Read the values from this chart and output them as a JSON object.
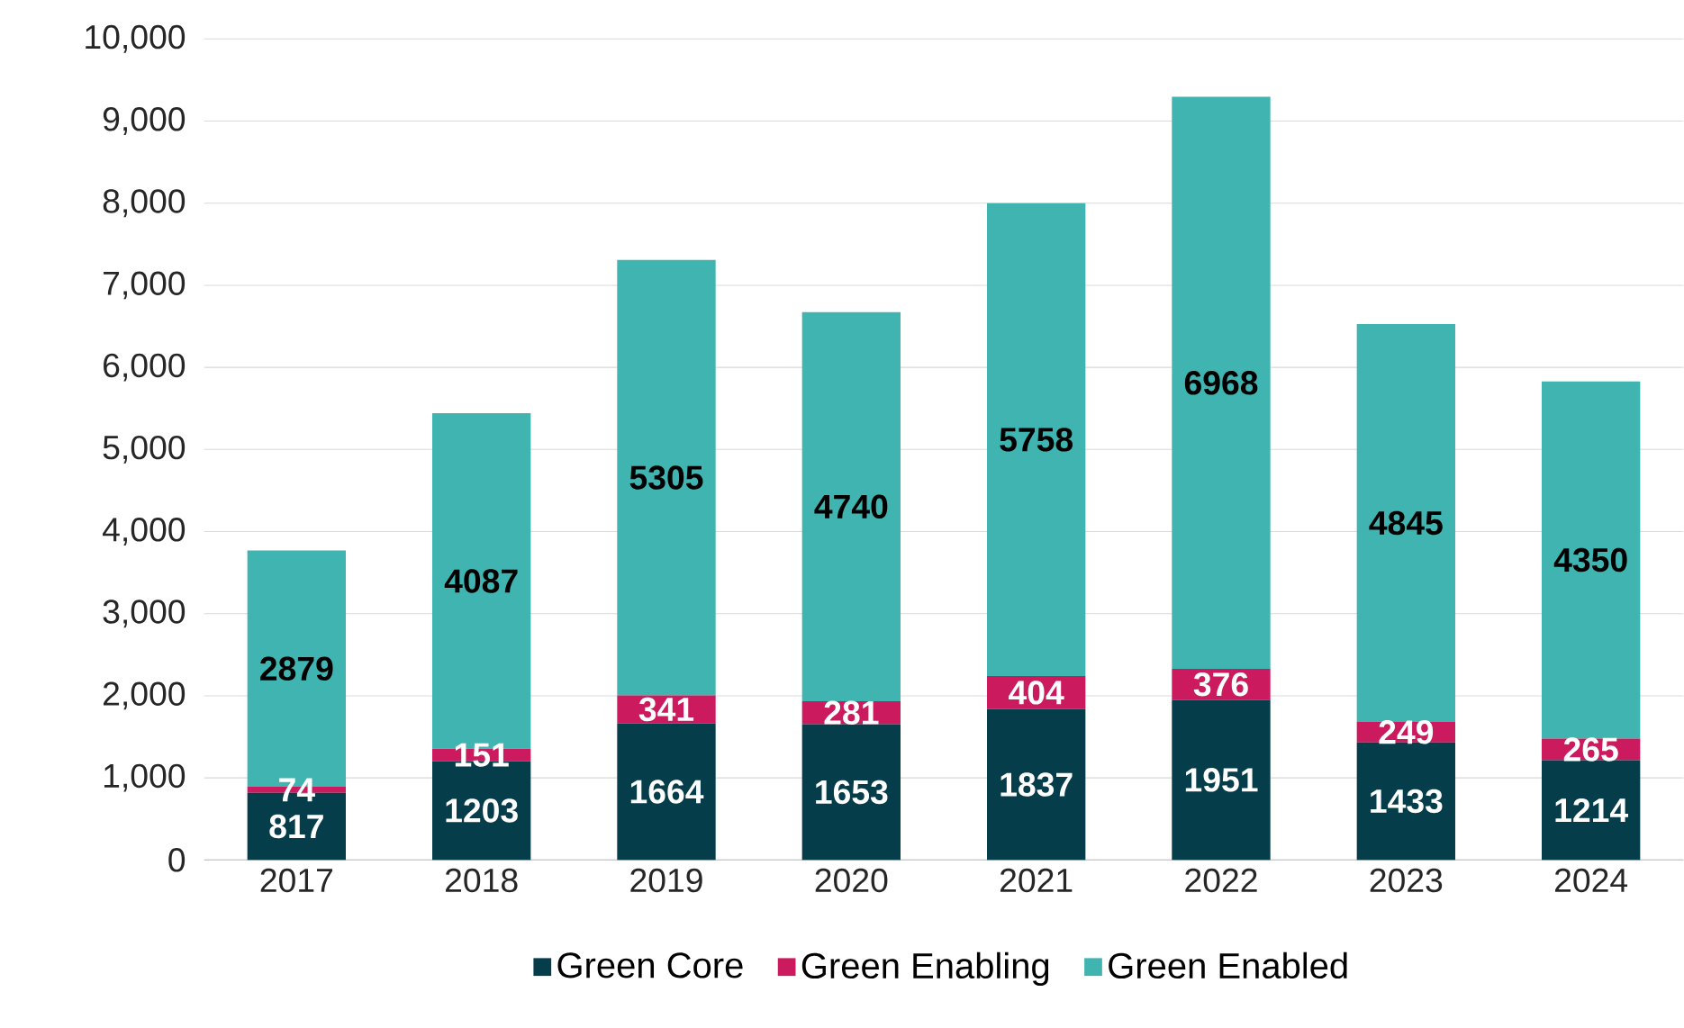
{
  "chart_data": {
    "type": "bar",
    "stacked": true,
    "categories": [
      "2017",
      "2018",
      "2019",
      "2020",
      "2021",
      "2022",
      "2023",
      "2024"
    ],
    "series": [
      {
        "name": "Green Core",
        "color": "#063d4b",
        "values": [
          817,
          1203,
          1664,
          1653,
          1837,
          1951,
          1433,
          1214
        ]
      },
      {
        "name": "Green Enabling",
        "color": "#cc1a5e",
        "values": [
          74,
          151,
          341,
          281,
          404,
          376,
          249,
          265
        ]
      },
      {
        "name": "Green Enabled",
        "color": "#40b4b0",
        "values": [
          2879,
          4087,
          5305,
          4740,
          5758,
          6968,
          4845,
          4350
        ]
      }
    ],
    "ylim": [
      0,
      10000
    ],
    "yticks": [
      0,
      {
        "value": 1000,
        "label": "1,000"
      },
      {
        "value": 2000,
        "label": "2,000"
      },
      {
        "value": 3000,
        "label": "3,000"
      },
      {
        "value": 4000,
        "label": "4,000"
      },
      {
        "value": 5000,
        "label": "5,000"
      },
      {
        "value": 6000,
        "label": "6,000"
      },
      {
        "value": 7000,
        "label": "7,000"
      },
      {
        "value": 8000,
        "label": "8,000"
      },
      {
        "value": 9000,
        "label": "9,000"
      },
      {
        "value": 10000,
        "label": "10,000"
      }
    ],
    "grid": "y",
    "legend": "bottom",
    "data_labels": true
  }
}
